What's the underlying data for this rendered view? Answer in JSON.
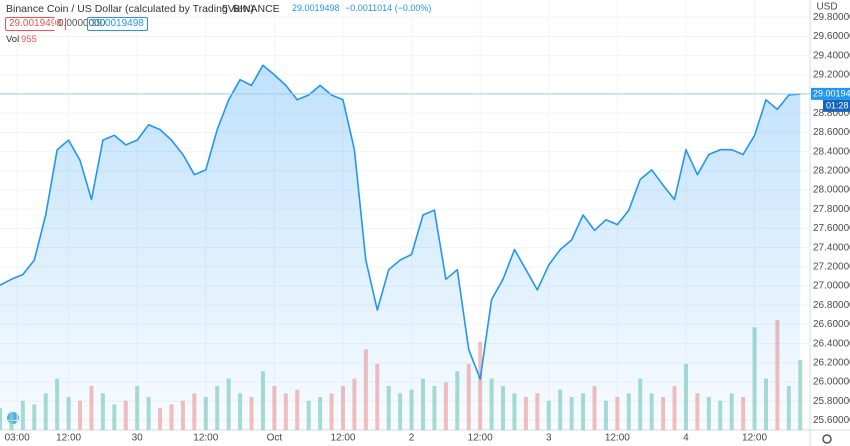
{
  "header": {
    "symbol": "Binance Coin / US Dollar (calculated by TradingView)",
    "interval": "5",
    "exchange": "BINANCE",
    "last": "29.0019498",
    "change": "−0.0011014 (−0.00%)"
  },
  "indicators": {
    "boxes": [
      "29.0019498",
      "0.0000000",
      "29.0019498"
    ],
    "vol_label": "Vol",
    "vol_value": "955"
  },
  "chart_data": {
    "type": "area",
    "x": [
      0,
      2,
      4,
      6,
      8,
      10,
      12,
      14,
      16,
      18,
      20,
      22,
      24,
      26,
      28,
      30,
      32,
      34,
      36,
      38,
      40,
      42,
      44,
      46,
      48,
      50,
      52,
      54,
      56,
      58,
      60,
      62,
      64,
      66,
      68,
      70,
      72,
      74,
      76,
      78,
      80,
      82,
      84,
      86,
      88,
      90,
      92,
      94,
      96,
      98,
      100,
      102,
      104,
      106,
      108,
      110,
      112,
      114,
      116,
      118,
      120,
      122,
      124,
      126,
      128,
      130,
      132,
      134,
      136,
      138,
      140
    ],
    "series": [
      {
        "name": "Price",
        "color": "#2196f3",
        "values": [
          27.01,
          27.07,
          27.12,
          27.27,
          27.74,
          28.42,
          28.52,
          28.31,
          27.9,
          28.52,
          28.57,
          28.47,
          28.52,
          28.68,
          28.63,
          28.52,
          28.37,
          28.16,
          28.21,
          28.63,
          28.94,
          29.15,
          29.09,
          29.3,
          29.2,
          29.09,
          28.94,
          28.99,
          29.09,
          28.99,
          28.94,
          28.42,
          27.27,
          26.75,
          27.17,
          27.27,
          27.33,
          27.74,
          27.79,
          27.07,
          27.17,
          26.34,
          26.03,
          26.86,
          27.07,
          27.38,
          27.17,
          26.96,
          27.22,
          27.38,
          27.48,
          27.74,
          27.58,
          27.69,
          27.64,
          27.79,
          28.11,
          28.21,
          28.05,
          27.9,
          28.42,
          28.16,
          28.37,
          28.42,
          28.42,
          28.37,
          28.57,
          28.94,
          28.84,
          28.99,
          29.0019498
        ]
      },
      {
        "name": "Volume",
        "up_color": "#8fd0c4",
        "down_color": "#f4a9a6",
        "values": [
          300,
          250,
          400,
          350,
          500,
          700,
          450,
          400,
          600,
          500,
          350,
          400,
          600,
          450,
          300,
          350,
          400,
          500,
          450,
          600,
          700,
          500,
          450,
          800,
          600,
          500,
          550,
          400,
          450,
          500,
          600,
          700,
          1100,
          900,
          600,
          500,
          550,
          700,
          600,
          650,
          800,
          900,
          1200,
          700,
          600,
          500,
          450,
          500,
          400,
          550,
          450,
          500,
          600,
          400,
          450,
          500,
          700,
          500,
          450,
          600,
          900,
          500,
          450,
          400,
          500,
          450,
          1400,
          700,
          1500,
          600,
          955
        ]
      }
    ],
    "ylim": [
      25.5,
      29.98
    ],
    "xlim": [
      0,
      141.7
    ],
    "yticks": [
      {
        "value": 25.6,
        "label": "25.6000000"
      },
      {
        "value": 25.8,
        "label": "25.8000000"
      },
      {
        "value": 26,
        "label": "26.0000000"
      },
      {
        "value": 26.2,
        "label": "26.2000000"
      },
      {
        "value": 26.4,
        "label": "26.4000000"
      },
      {
        "value": 26.6,
        "label": "26.6000000"
      },
      {
        "value": 26.8,
        "label": "26.8000000"
      },
      {
        "value": 27,
        "label": "27.0000000"
      },
      {
        "value": 27.2,
        "label": "27.2000000"
      },
      {
        "value": 27.4,
        "label": "27.4000000"
      },
      {
        "value": 27.6,
        "label": "27.6000000"
      },
      {
        "value": 27.8,
        "label": "27.8000000"
      },
      {
        "value": 28,
        "label": "28.0000000"
      },
      {
        "value": 28.2,
        "label": "28.2000000"
      },
      {
        "value": 28.4,
        "label": "28.4000000"
      },
      {
        "value": 28.6,
        "label": "28.6000000"
      },
      {
        "value": 28.8,
        "label": "28.8000000"
      },
      {
        "value": 29,
        "label": "29.0000000"
      },
      {
        "value": 29.2,
        "label": "29.2000000"
      },
      {
        "value": 29.4,
        "label": "29.4000000"
      },
      {
        "value": 29.6,
        "label": "29.6000000"
      },
      {
        "value": 29.8,
        "label": "29.8000000"
      }
    ],
    "xticks": [
      {
        "value": 3,
        "label": "03:00"
      },
      {
        "value": 12,
        "label": "12:00"
      },
      {
        "value": 24,
        "label": "30"
      },
      {
        "value": 36,
        "label": "12:00"
      },
      {
        "value": 48,
        "label": "Oct"
      },
      {
        "value": 60,
        "label": "12:00"
      },
      {
        "value": 72,
        "label": "2"
      },
      {
        "value": 84,
        "label": "12:00"
      },
      {
        "value": 96,
        "label": "3"
      },
      {
        "value": 108,
        "label": "12:00"
      },
      {
        "value": 120,
        "label": "4"
      },
      {
        "value": 132,
        "label": "12:00"
      }
    ],
    "grid": true,
    "currency": "USD",
    "last_price": 29.0019498,
    "countdown": "01:28"
  }
}
